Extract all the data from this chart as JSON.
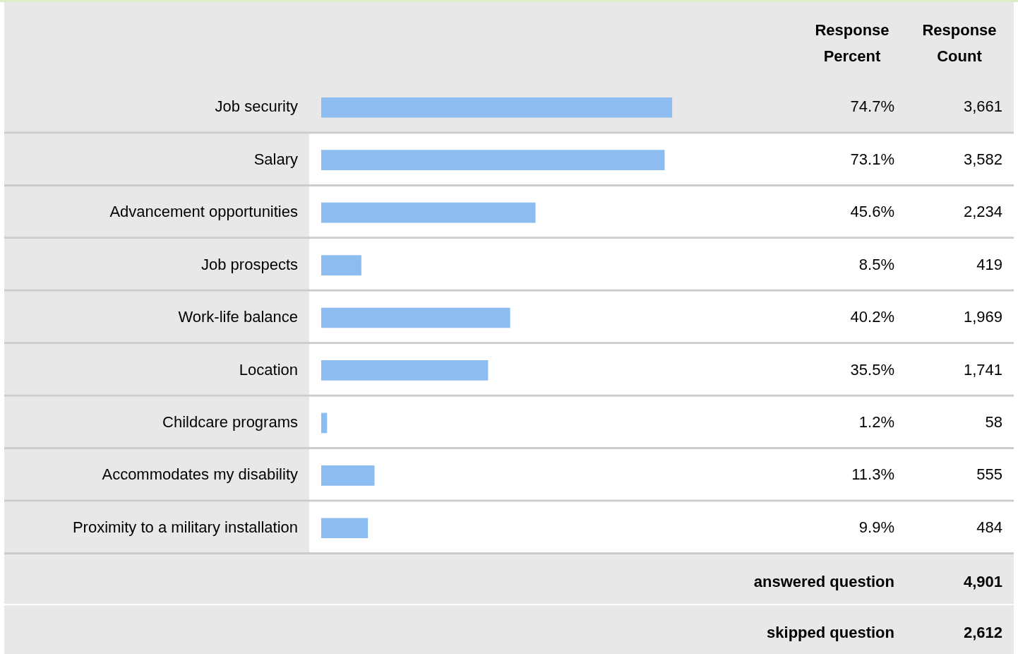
{
  "chart_data": {
    "type": "bar",
    "orientation": "horizontal",
    "categories": [
      "Job security",
      "Salary",
      "Advancement opportunities",
      "Job prospects",
      "Work-life balance",
      "Location",
      "Childcare programs",
      "Accommodates my disability",
      "Proximity to a military installation"
    ],
    "values": [
      74.7,
      73.1,
      45.6,
      8.5,
      40.2,
      35.5,
      1.2,
      11.3,
      9.9
    ],
    "value_labels": [
      "74.7%",
      "73.1%",
      "45.6%",
      "8.5%",
      "40.2%",
      "35.5%",
      "1.2%",
      "11.3%",
      "9.9%"
    ],
    "color": "#8cbcf0",
    "tick_labels": "y",
    "annotations": [
      "Response Percent",
      "Response Count",
      "3,661",
      "3,582",
      "2,234",
      "419",
      "1,969",
      "1,741",
      "58",
      "555",
      "484",
      "answered question",
      "4,901",
      "skipped question",
      "2,612"
    ]
  }
}
